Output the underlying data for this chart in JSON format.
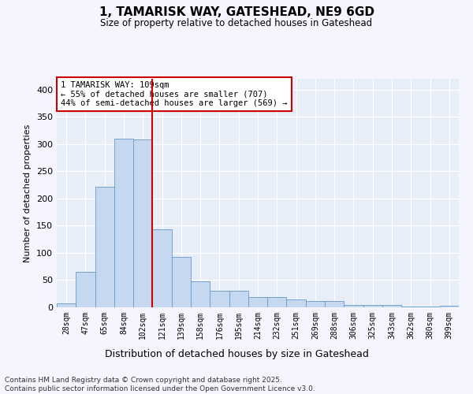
{
  "title": "1, TAMARISK WAY, GATESHEAD, NE9 6GD",
  "subtitle": "Size of property relative to detached houses in Gateshead",
  "xlabel": "Distribution of detached houses by size in Gateshead",
  "ylabel": "Number of detached properties",
  "categories": [
    "28sqm",
    "47sqm",
    "65sqm",
    "84sqm",
    "102sqm",
    "121sqm",
    "139sqm",
    "158sqm",
    "176sqm",
    "195sqm",
    "214sqm",
    "232sqm",
    "251sqm",
    "269sqm",
    "288sqm",
    "306sqm",
    "325sqm",
    "343sqm",
    "362sqm",
    "380sqm",
    "399sqm"
  ],
  "values": [
    7,
    65,
    221,
    310,
    308,
    144,
    93,
    48,
    31,
    31,
    19,
    19,
    15,
    12,
    11,
    5,
    4,
    4,
    2,
    2,
    3
  ],
  "bar_color": "#c5d8f0",
  "bar_edge_color": "#6699cc",
  "marker_color": "#cc0000",
  "annotation_text": "1 TAMARISK WAY: 109sqm\n← 55% of detached houses are smaller (707)\n44% of semi-detached houses are larger (569) →",
  "annotation_box_edge": "#cc0000",
  "plot_bg_color": "#e8eef8",
  "fig_bg_color": "#f5f5ff",
  "grid_color": "#ffffff",
  "ylim": [
    0,
    420
  ],
  "yticks": [
    0,
    50,
    100,
    150,
    200,
    250,
    300,
    350,
    400
  ],
  "footer_line1": "Contains HM Land Registry data © Crown copyright and database right 2025.",
  "footer_line2": "Contains public sector information licensed under the Open Government Licence v3.0."
}
